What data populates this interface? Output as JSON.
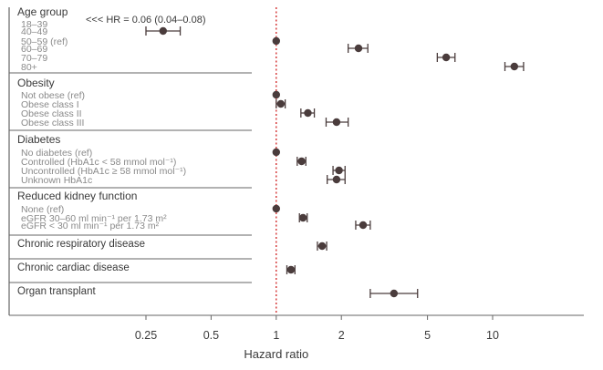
{
  "chart_data": {
    "type": "forest",
    "xlabel": "Hazard ratio",
    "xscale": "log",
    "xlim": [
      0.18,
      17
    ],
    "xticks": [
      0.25,
      0.5,
      1,
      2,
      5,
      10
    ],
    "xtick_labels": [
      "0.25",
      "0.5",
      "1",
      "2",
      "5",
      "10"
    ],
    "reference_line": 1,
    "colors": {
      "marker": "#4a3c3c",
      "reference_line": "#d02020",
      "frame": "#666666",
      "text": "#3a3a3a",
      "subtext": "#8a8a8a"
    },
    "annotation": "<<< HR = 0.06 (0.04–0.08)",
    "groups": [
      {
        "title": "Age group",
        "rows": [
          {
            "label": "18–39",
            "hr": null,
            "lo": null,
            "hi": null
          },
          {
            "label": "40–49",
            "hr": 0.3,
            "lo": 0.25,
            "hi": 0.36
          },
          {
            "label": "50–59 (ref)",
            "hr": 1.0,
            "lo": 1.0,
            "hi": 1.0
          },
          {
            "label": "60–69",
            "hr": 2.4,
            "lo": 2.15,
            "hi": 2.65
          },
          {
            "label": "70–79",
            "hr": 6.1,
            "lo": 5.55,
            "hi": 6.7
          },
          {
            "label": "80+",
            "hr": 12.6,
            "lo": 11.4,
            "hi": 13.9
          }
        ]
      },
      {
        "title": "Obesity",
        "rows": [
          {
            "label": "Not obese (ref)",
            "hr": 1.0,
            "lo": 1.0,
            "hi": 1.0
          },
          {
            "label": "Obese class I",
            "hr": 1.05,
            "lo": 1.0,
            "hi": 1.1
          },
          {
            "label": "Obese class II",
            "hr": 1.4,
            "lo": 1.3,
            "hi": 1.5
          },
          {
            "label": "Obese class III",
            "hr": 1.9,
            "lo": 1.7,
            "hi": 2.15
          }
        ]
      },
      {
        "title": "Diabetes",
        "rows": [
          {
            "label": "No diabetes (ref)",
            "hr": 1.0,
            "lo": 1.0,
            "hi": 1.0
          },
          {
            "label": "Controlled (HbA1c < 58 mmol mol⁻¹)",
            "hr": 1.31,
            "lo": 1.25,
            "hi": 1.37
          },
          {
            "label": "Uncontrolled (HbA1c ≥ 58 mmol mol⁻¹)",
            "hr": 1.95,
            "lo": 1.83,
            "hi": 2.08
          },
          {
            "label": "Unknown HbA1c",
            "hr": 1.9,
            "lo": 1.72,
            "hi": 2.08
          }
        ]
      },
      {
        "title": "Reduced kidney function",
        "rows": [
          {
            "label": "None (ref)",
            "hr": 1.0,
            "lo": 1.0,
            "hi": 1.0
          },
          {
            "label": "eGFR 30–60 ml min⁻¹ per 1.73 m²",
            "hr": 1.33,
            "lo": 1.28,
            "hi": 1.39
          },
          {
            "label": "eGFR < 30  ml min⁻¹ per 1.73 m²",
            "hr": 2.52,
            "lo": 2.33,
            "hi": 2.72
          }
        ]
      },
      {
        "title": "Chronic respiratory disease",
        "rows": [
          {
            "label": "",
            "hr": 1.63,
            "lo": 1.55,
            "hi": 1.71
          }
        ]
      },
      {
        "title": "Chronic cardiac disease",
        "rows": [
          {
            "label": "",
            "hr": 1.17,
            "lo": 1.12,
            "hi": 1.22
          }
        ]
      },
      {
        "title": "Organ transplant",
        "rows": [
          {
            "label": "",
            "hr": 3.5,
            "lo": 2.72,
            "hi": 4.5
          }
        ]
      }
    ]
  }
}
